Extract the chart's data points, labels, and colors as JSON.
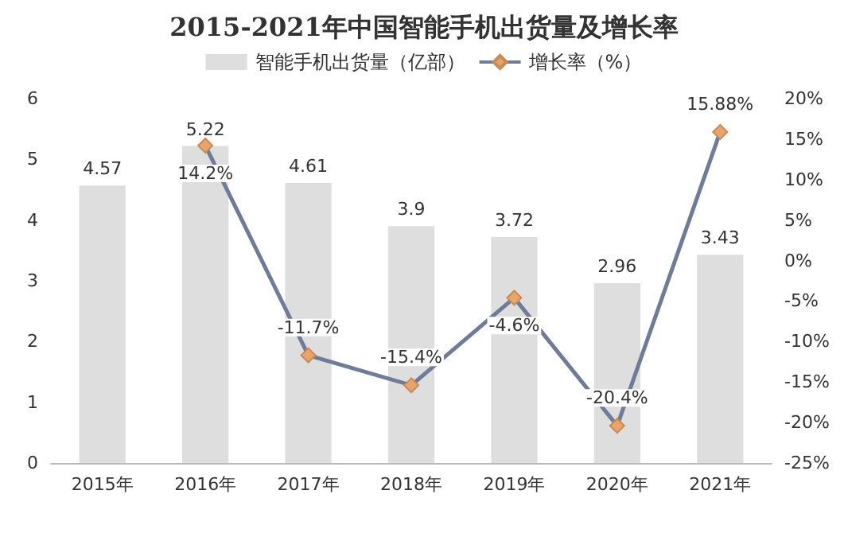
{
  "chart_data": {
    "type": "bar",
    "title": "2015-2021年中国智能手机出货量及增长率",
    "categories": [
      "2015年",
      "2016年",
      "2017年",
      "2018年",
      "2019年",
      "2020年",
      "2021年"
    ],
    "series": [
      {
        "name": "智能手机出货量（亿部）",
        "color": "#dedede",
        "values": [
          4.57,
          5.22,
          4.61,
          3.9,
          3.72,
          2.96,
          3.43
        ]
      },
      {
        "name": "增长率（%）",
        "type": "line",
        "axis": "y2",
        "color": "#6f7c99",
        "values": [
          null,
          14.2,
          -11.7,
          -15.4,
          -4.6,
          -20.4,
          15.88
        ],
        "value_labels": [
          null,
          "14.2%",
          "-11.7%",
          "-15.4%",
          "-4.6%",
          "-20.4%",
          "15.88%"
        ],
        "marker": "diamond"
      }
    ],
    "data_labels": true,
    "ylim": [
      0,
      6
    ],
    "yticks": [
      0,
      1,
      2,
      3,
      4,
      5,
      6
    ],
    "y2lim": [
      -25,
      20
    ],
    "y2ticks": [
      {
        "value": -25,
        "label": "-25%"
      },
      {
        "value": -20,
        "label": "-20%"
      },
      {
        "value": -15,
        "label": "-15%"
      },
      {
        "value": -10,
        "label": "-10%"
      },
      {
        "value": -5,
        "label": "-5%"
      },
      {
        "value": 0,
        "label": "0%"
      },
      {
        "value": 5,
        "label": "5%"
      },
      {
        "value": 10,
        "label": "10%"
      },
      {
        "value": 15,
        "label": "15%"
      },
      {
        "value": 20,
        "label": "20%"
      }
    ],
    "legend": "top",
    "grid": false
  }
}
